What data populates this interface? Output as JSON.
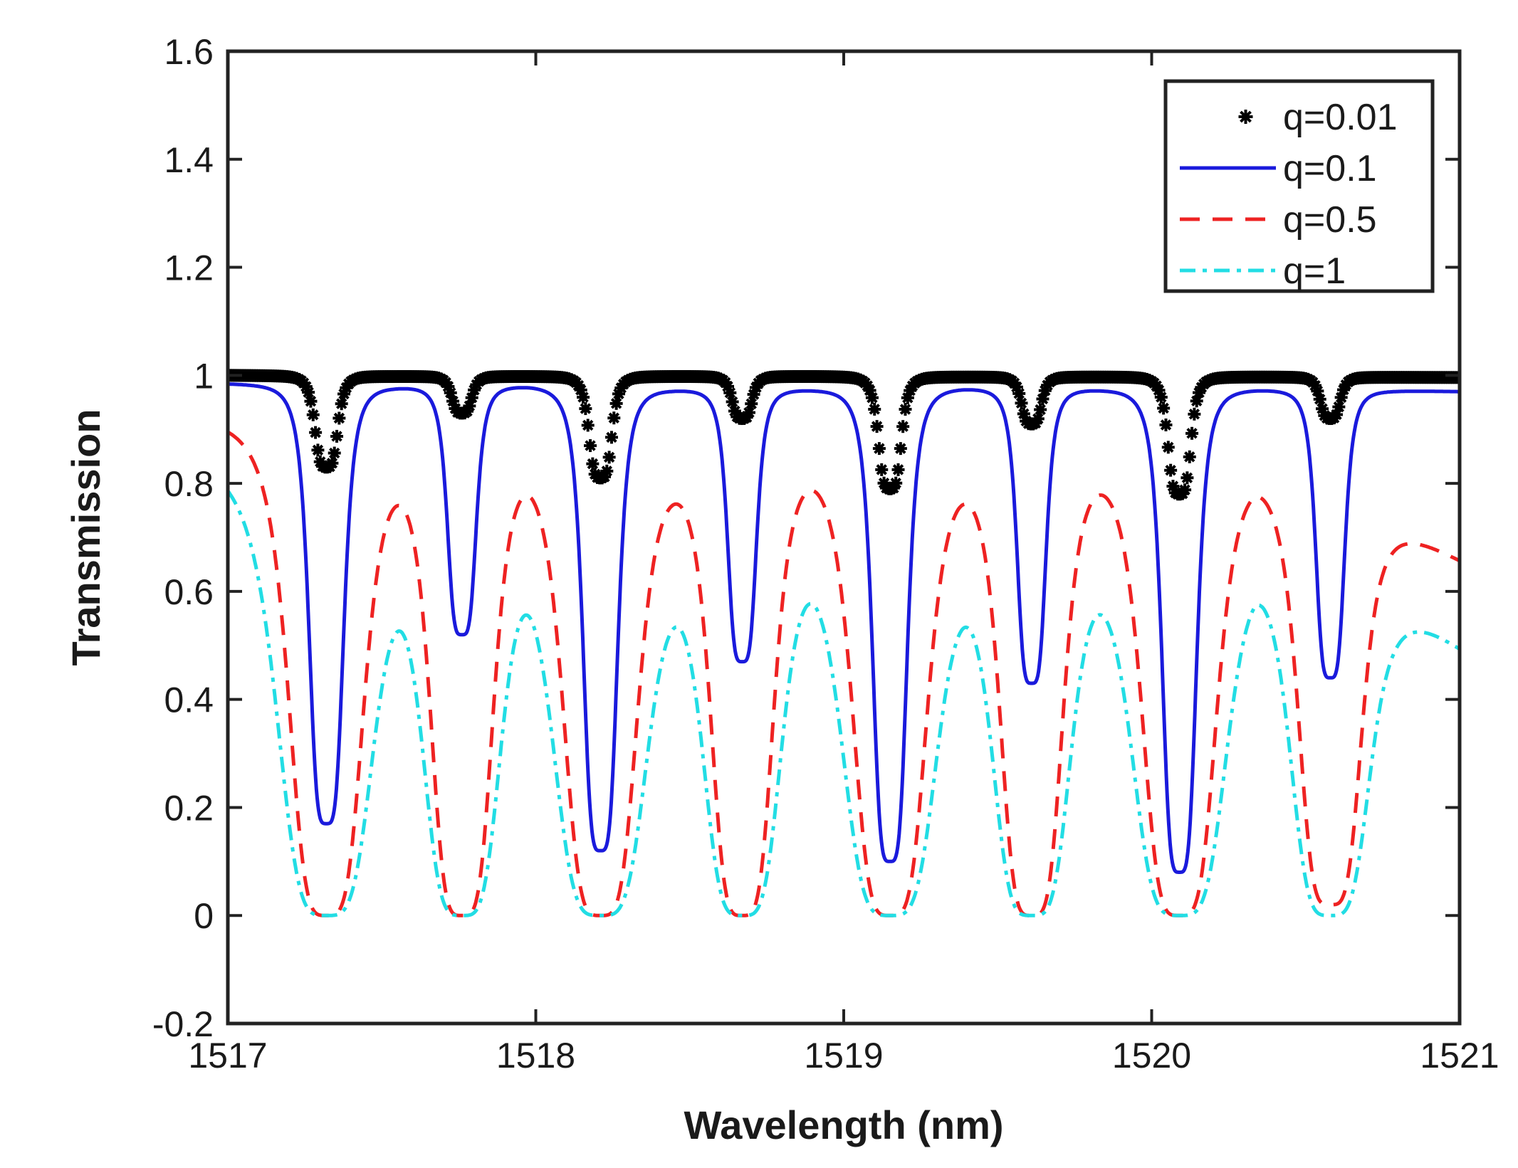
{
  "chart_data": {
    "type": "line",
    "title": "",
    "xlabel": "Wavelength (nm)",
    "ylabel": "Transmission",
    "xlim": [
      1517,
      1521
    ],
    "ylim": [
      -0.2,
      1.6
    ],
    "xticks": [
      1517,
      1518,
      1519,
      1520,
      1521
    ],
    "yticks": [
      -0.2,
      0,
      0.2,
      0.4,
      0.6,
      0.8,
      1,
      1.2,
      1.4,
      1.6
    ],
    "ytick_labels": [
      "-0.2",
      "0",
      "0.2",
      "0.4",
      "0.6",
      "0.8",
      "1",
      "1.2",
      "1.4",
      "1.6"
    ],
    "grid": false,
    "legend_position": "top-right",
    "resonances": [
      1517.32,
      1517.76,
      1518.21,
      1518.67,
      1519.15,
      1519.61,
      1520.09,
      1520.58
    ],
    "series": [
      {
        "name": "q=0.01",
        "style": "markers",
        "marker": "asterisk",
        "color": "#000000",
        "baseline": [
          1.0,
          0.998,
          0.998,
          0.998,
          0.998,
          0.997,
          0.997,
          0.997,
          0.996
        ],
        "dip_minima": [
          0.83,
          0.93,
          0.81,
          0.92,
          0.79,
          0.91,
          0.78,
          0.92
        ],
        "dip_halfwidths": [
          0.04,
          0.035,
          0.04,
          0.035,
          0.04,
          0.035,
          0.04,
          0.035
        ]
      },
      {
        "name": "q=0.1",
        "style": "solid",
        "color": "#1a1adc",
        "baseline": [
          0.985,
          0.98,
          0.982,
          0.975,
          0.975,
          0.978,
          0.975,
          0.975,
          0.97
        ],
        "dip_minima": [
          0.17,
          0.52,
          0.12,
          0.47,
          0.1,
          0.43,
          0.08,
          0.44
        ],
        "dip_halfwidths": [
          0.06,
          0.05,
          0.06,
          0.05,
          0.06,
          0.05,
          0.06,
          0.05
        ]
      },
      {
        "name": "q=0.5",
        "style": "dashed",
        "color": "#ee2222",
        "baseline": [
          0.92,
          0.9,
          0.91,
          0.88,
          0.89,
          0.88,
          0.88,
          0.87,
          0.66
        ],
        "dip_minima": [
          0.0,
          0.0,
          0.0,
          0.0,
          0.0,
          0.0,
          0.0,
          0.02
        ],
        "dip_halfwidths": [
          0.13,
          0.11,
          0.13,
          0.11,
          0.13,
          0.11,
          0.13,
          0.11
        ]
      },
      {
        "name": "q=1",
        "style": "dashdot",
        "color": "#22dde4",
        "baseline": [
          0.85,
          0.82,
          0.84,
          0.78,
          0.8,
          0.78,
          0.77,
          0.78,
          0.5
        ],
        "dip_minima": [
          0.0,
          0.0,
          0.0,
          0.0,
          0.0,
          0.0,
          0.0,
          0.0
        ],
        "dip_halfwidths": [
          0.17,
          0.14,
          0.17,
          0.14,
          0.17,
          0.14,
          0.17,
          0.14
        ]
      }
    ]
  }
}
